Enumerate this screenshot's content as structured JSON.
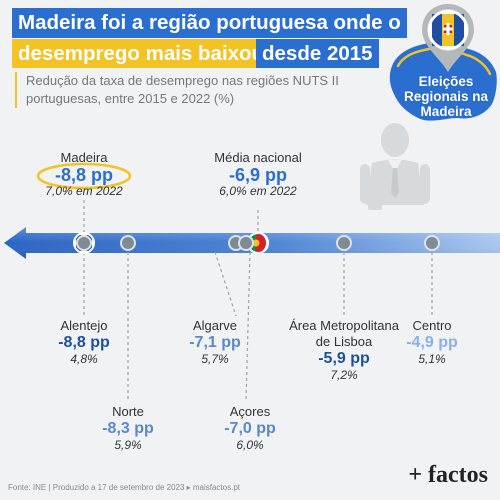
{
  "header": {
    "title_line1": "Madeira foi a região portuguesa onde o",
    "title_line2_highlight": "desemprego mais baixou",
    "title_line2_rest": "desde 2015",
    "subtitle": "Redução da taxa de desemprego nas regiões NUTS II portuguesas, entre 2015 e 2022 (%)"
  },
  "badge": {
    "text_line1": "Eleições",
    "text_line2": "Regionais na",
    "text_line3": "Madeira"
  },
  "colors": {
    "blue": "#2a6fd0",
    "yellow": "#f3c225",
    "light_blue": "#8ab0e6",
    "medium_blue": "#5a88c8",
    "dark_blue": "#1e4f9c"
  },
  "chart_data": {
    "type": "scatter",
    "title": "Madeira foi a região portuguesa onde o desemprego mais baixou desde 2015",
    "xlabel": "",
    "ylabel": "",
    "unit": "pp",
    "x_direction": "reversed",
    "points": [
      {
        "name": "Madeira",
        "value": -8.8,
        "value_label": "-8,8 pp",
        "rate_2022": "7,0% em 2022",
        "position": "above",
        "highlight": true
      },
      {
        "name": "Média nacional",
        "value": -6.9,
        "value_label": "-6,9 pp",
        "rate_2022": "6,0% em 2022",
        "position": "above",
        "highlight": false
      },
      {
        "name": "Alentejo",
        "value": -8.8,
        "value_label": "-8,8 pp",
        "rate_2022": "4,8%",
        "position": "below"
      },
      {
        "name": "Norte",
        "value": -8.3,
        "value_label": "-8,3 pp",
        "rate_2022": "5,9%",
        "position": "below"
      },
      {
        "name": "Algarve",
        "value": -7.1,
        "value_label": "-7,1 pp",
        "rate_2022": "5,7%",
        "position": "below"
      },
      {
        "name": "Açores",
        "value": -7.0,
        "value_label": "-7,0 pp",
        "rate_2022": "6,0%",
        "position": "below"
      },
      {
        "name": "Área Metropolitana de Lisboa",
        "value": -5.9,
        "value_label": "-5,9 pp",
        "rate_2022": "7,2%",
        "position": "below"
      },
      {
        "name": "Centro",
        "value": -4.9,
        "value_label": "-4,9 pp",
        "rate_2022": "5,1%",
        "position": "below"
      }
    ]
  },
  "footer": {
    "source": "Fonte: INE | Produzido a 17 de setembro de 2023 ▸ maisfactos.pt",
    "logo": "+ factos"
  }
}
